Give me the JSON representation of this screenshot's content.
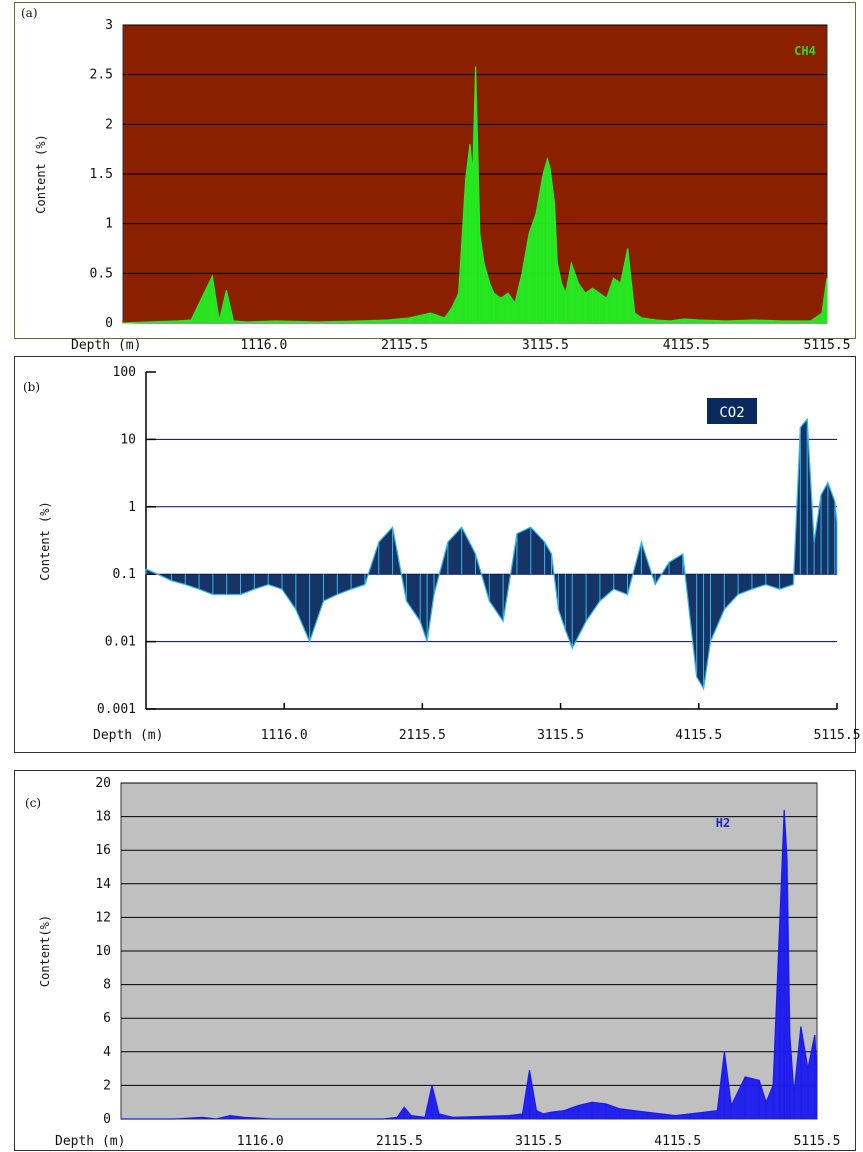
{
  "chart_data": [
    {
      "type": "area",
      "panel_label": "(a)",
      "series_name": "CH4",
      "ylabel": "Content (%)",
      "xlabel": "Depth (m)",
      "x_ticks": [
        "1116.0",
        "2115.5",
        "3115.5",
        "4115.5",
        "5115.5"
      ],
      "x_tick_values": [
        1116.0,
        2115.5,
        3115.5,
        4115.5,
        5115.5
      ],
      "y_ticks": [
        "0",
        "0.5",
        "1",
        "1.5",
        "2",
        "2.5",
        "3"
      ],
      "ylim": [
        0,
        3
      ],
      "xlim": [
        116.0,
        5115.5
      ],
      "scale": "linear",
      "grid": true,
      "legend_position": "top-right",
      "colors": {
        "background": "#8b2000",
        "series": "#22ee22",
        "grid": "#000000",
        "label": "#22dd22"
      },
      "x": [
        116,
        300,
        500,
        600,
        750,
        800,
        850,
        900,
        1000,
        1200,
        1500,
        1800,
        2000,
        2150,
        2300,
        2400,
        2450,
        2500,
        2550,
        2580,
        2600,
        2620,
        2650,
        2680,
        2700,
        2720,
        2750,
        2800,
        2850,
        2900,
        2950,
        3000,
        3050,
        3100,
        3130,
        3150,
        3180,
        3200,
        3230,
        3260,
        3300,
        3350,
        3400,
        3450,
        3500,
        3550,
        3600,
        3650,
        3700,
        3750,
        3800,
        3900,
        4000,
        4100,
        4200,
        4400,
        4600,
        4800,
        5000,
        5080,
        5115
      ],
      "values": [
        0,
        0.01,
        0.02,
        0.03,
        0.47,
        0.02,
        0.33,
        0.02,
        0.01,
        0.02,
        0.01,
        0.02,
        0.03,
        0.05,
        0.1,
        0.05,
        0.15,
        0.3,
        1.45,
        1.8,
        1.5,
        2.58,
        0.9,
        0.6,
        0.5,
        0.4,
        0.3,
        0.25,
        0.3,
        0.2,
        0.5,
        0.9,
        1.1,
        1.5,
        1.65,
        1.55,
        1.2,
        0.6,
        0.4,
        0.3,
        0.6,
        0.4,
        0.3,
        0.35,
        0.3,
        0.25,
        0.45,
        0.4,
        0.75,
        0.1,
        0.05,
        0.03,
        0.02,
        0.04,
        0.03,
        0.02,
        0.03,
        0.02,
        0.02,
        0.1,
        0.45
      ]
    },
    {
      "type": "area",
      "panel_label": "(b)",
      "series_name": "CO2",
      "ylabel": "Content (%)",
      "xlabel": "Depth (m)",
      "x_ticks": [
        "1116.0",
        "2115.5",
        "3115.5",
        "4115.5",
        "5115.5"
      ],
      "x_tick_values": [
        1116.0,
        2115.5,
        3115.5,
        4115.5,
        5115.5
      ],
      "y_ticks": [
        "0.001",
        "0.01",
        "0.1",
        "1",
        "10",
        "100"
      ],
      "ylim": [
        0.001,
        100
      ],
      "baseline": 0.1,
      "xlim": [
        116.0,
        5115.5
      ],
      "scale": "log",
      "grid": true,
      "legend_position": "top-right",
      "colors": {
        "background": "#ffffff",
        "series_fill": "#0a2a5e",
        "series_line": "#35b8e8",
        "grid": "#000080",
        "label_bg": "#0a2a5e",
        "label_text": "#ffffff"
      },
      "x": [
        116,
        200,
        300,
        400,
        500,
        600,
        700,
        800,
        900,
        1000,
        1100,
        1200,
        1300,
        1400,
        1500,
        1600,
        1700,
        1800,
        1900,
        2000,
        2100,
        2150,
        2200,
        2300,
        2400,
        2500,
        2600,
        2700,
        2800,
        2900,
        3000,
        3050,
        3100,
        3150,
        3200,
        3300,
        3400,
        3500,
        3600,
        3700,
        3800,
        3900,
        4000,
        4100,
        4150,
        4200,
        4300,
        4400,
        4500,
        4600,
        4700,
        4800,
        4850,
        4900,
        4950,
        5000,
        5050,
        5100,
        5115
      ],
      "values": [
        0.12,
        0.1,
        0.08,
        0.07,
        0.06,
        0.05,
        0.05,
        0.05,
        0.06,
        0.07,
        0.06,
        0.03,
        0.01,
        0.04,
        0.05,
        0.06,
        0.07,
        0.3,
        0.5,
        0.04,
        0.02,
        0.01,
        0.05,
        0.3,
        0.5,
        0.2,
        0.04,
        0.02,
        0.4,
        0.5,
        0.3,
        0.2,
        0.03,
        0.015,
        0.008,
        0.02,
        0.04,
        0.06,
        0.05,
        0.3,
        0.07,
        0.15,
        0.2,
        0.003,
        0.002,
        0.01,
        0.03,
        0.05,
        0.06,
        0.07,
        0.06,
        0.07,
        15,
        20,
        0.3,
        1.5,
        2.3,
        1.2,
        0.6
      ]
    },
    {
      "type": "area",
      "panel_label": "(c)",
      "series_name": "H2",
      "ylabel": "Content(%)",
      "xlabel": "Depth (m)",
      "x_ticks": [
        "1116.0",
        "2115.5",
        "3115.5",
        "4115.5",
        "5115.5"
      ],
      "x_tick_values": [
        1116.0,
        2115.5,
        3115.5,
        4115.5,
        5115.5
      ],
      "y_ticks": [
        "0",
        "2",
        "4",
        "6",
        "8",
        "10",
        "12",
        "14",
        "16",
        "18",
        "20"
      ],
      "ylim": [
        0,
        20
      ],
      "xlim": [
        116.0,
        5115.5
      ],
      "scale": "linear",
      "grid": true,
      "legend_position": "top-right",
      "colors": {
        "background": "#c0c0c0",
        "series": "#1a1aee",
        "grid": "#000000",
        "label": "#2222cc"
      },
      "x": [
        116,
        500,
        700,
        800,
        900,
        1000,
        1200,
        1500,
        1800,
        2000,
        2100,
        2150,
        2200,
        2300,
        2350,
        2400,
        2500,
        2700,
        2900,
        3000,
        3050,
        3100,
        3150,
        3200,
        3300,
        3400,
        3500,
        3600,
        3700,
        3800,
        3900,
        4000,
        4100,
        4200,
        4300,
        4400,
        4450,
        4500,
        4600,
        4700,
        4750,
        4800,
        4850,
        4880,
        4900,
        4920,
        4950,
        5000,
        5050,
        5100,
        5115
      ],
      "values": [
        0,
        0,
        0.1,
        0,
        0.2,
        0.1,
        0,
        0,
        0,
        0,
        0.1,
        0.7,
        0.2,
        0.1,
        2.0,
        0.3,
        0.1,
        0.15,
        0.2,
        0.3,
        2.9,
        0.5,
        0.3,
        0.4,
        0.5,
        0.8,
        1.0,
        0.9,
        0.6,
        0.5,
        0.4,
        0.3,
        0.2,
        0.3,
        0.4,
        0.5,
        4.0,
        0.8,
        2.5,
        2.3,
        1.0,
        2.0,
        12.0,
        18.4,
        15.5,
        5.0,
        1.5,
        5.5,
        3.0,
        5.0,
        2.5
      ]
    }
  ]
}
